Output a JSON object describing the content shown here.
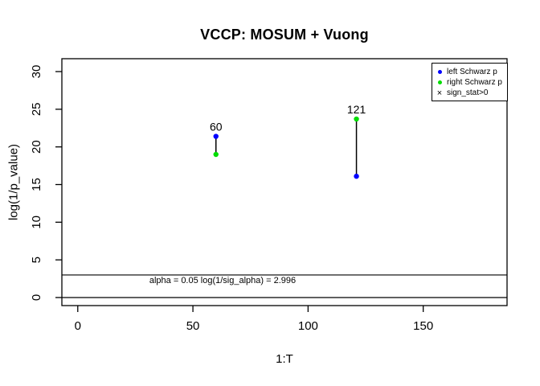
{
  "chart_data": {
    "type": "scatter",
    "title": "VCCP: MOSUM + Vuong",
    "xlabel": "1:T",
    "ylabel": "log(1/p_value)",
    "x_ticks": [
      0,
      50,
      100,
      150
    ],
    "y_ticks": [
      0,
      5,
      10,
      15,
      20,
      25,
      30
    ],
    "xlim": [
      0,
      183
    ],
    "ylim": [
      0,
      30
    ],
    "grid": false,
    "series": [
      {
        "name": "left Schwarz p",
        "color": "#0000FF",
        "marker": "dot",
        "points": [
          {
            "x": 60,
            "y": 21.4
          },
          {
            "x": 121,
            "y": 16.1
          }
        ]
      },
      {
        "name": "right Schwarz p",
        "color": "#00DD00",
        "marker": "dot",
        "points": [
          {
            "x": 60,
            "y": 19.0
          },
          {
            "x": 121,
            "y": 23.7
          }
        ]
      },
      {
        "name": "sign_stat>0",
        "color": "#000000",
        "marker": "x",
        "points": []
      }
    ],
    "segments": [
      {
        "x": 60,
        "y_top": 21.4,
        "y_bottom": 19.0,
        "label": "60"
      },
      {
        "x": 121,
        "y_top": 23.7,
        "y_bottom": 16.1,
        "label": "121"
      }
    ],
    "threshold_line": {
      "y": 2.996,
      "label": "alpha = 0.05 log(1/sig_alpha) = 2.996"
    },
    "zero_line": {
      "y": 0
    },
    "legend": {
      "position": "topright",
      "entries": [
        {
          "label": "left Schwarz p",
          "marker": "dot",
          "color": "#0000FF"
        },
        {
          "label": "right Schwarz p",
          "marker": "dot",
          "color": "#00DD00"
        },
        {
          "label": "sign_stat>0",
          "marker": "x",
          "color": "#000000"
        }
      ]
    }
  }
}
